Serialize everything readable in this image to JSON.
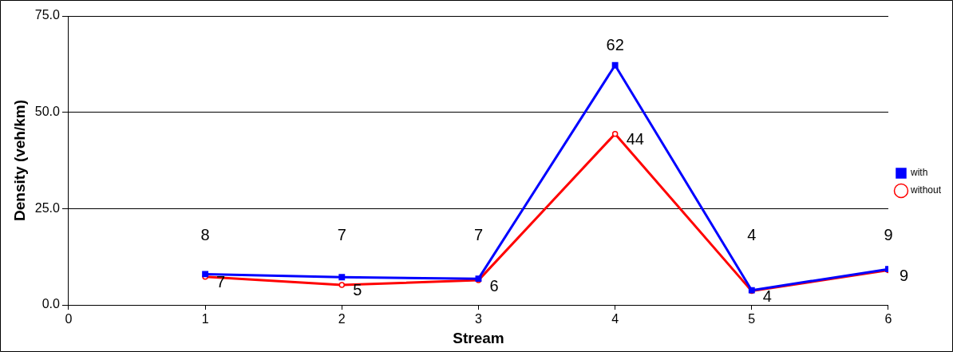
{
  "chart_data": {
    "type": "line",
    "xlabel": "Stream",
    "ylabel": "Density (veh/km)",
    "x": [
      1,
      2,
      3,
      4,
      5,
      6
    ],
    "xlim": [
      0,
      6
    ],
    "xticks": [
      0,
      1,
      2,
      3,
      4,
      5,
      6
    ],
    "ylim": [
      0,
      75
    ],
    "yticks": [
      {
        "value": 0,
        "label": "0.0"
      },
      {
        "value": 25,
        "label": "25.0"
      },
      {
        "value": 50,
        "label": "50.0"
      },
      {
        "value": 75,
        "label": "75.0"
      }
    ],
    "grid": "y",
    "legend": "right",
    "series": [
      {
        "name": "with",
        "color": "#0000ff",
        "marker": "square",
        "values": [
          8,
          7.2,
          6.8,
          62.2,
          3.8,
          9.3
        ],
        "value_labels": [
          "8",
          "7",
          "7",
          "62",
          "4",
          "9"
        ]
      },
      {
        "name": "without",
        "color": "#ff0000",
        "marker": "circle",
        "values": [
          7.3,
          5.2,
          6.4,
          44.4,
          3.6,
          9.0
        ],
        "value_labels": [
          "7",
          "5",
          "6",
          "44",
          "4",
          "9"
        ]
      }
    ]
  }
}
